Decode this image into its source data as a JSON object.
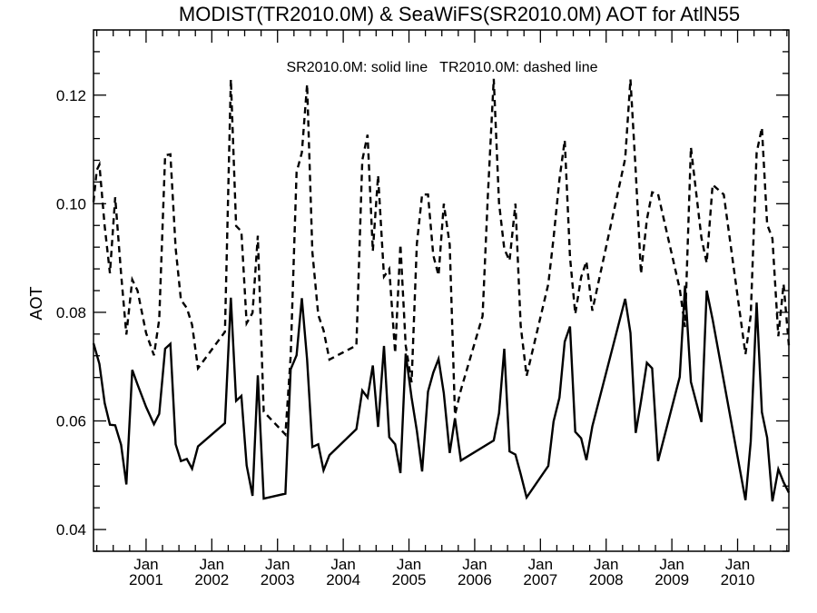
{
  "chart_data": {
    "type": "line",
    "title": "MODIST(TR2010.0M) & SeaWiFS(SR2010.0M)  AOT for AtlN55",
    "ylabel": "AOT",
    "xlabel": "",
    "legend_text": "SR2010.0M: solid line   TR2010.0M: dashed line",
    "legend_position": "top-center",
    "grid": false,
    "xlim": [
      2000.2,
      2010.78
    ],
    "ylim": [
      0.036,
      0.132
    ],
    "y_ticks": [
      {
        "value": 0.04,
        "label": "0.04"
      },
      {
        "value": 0.06,
        "label": "0.06"
      },
      {
        "value": 0.08,
        "label": "0.08"
      },
      {
        "value": 0.1,
        "label": "0.10"
      },
      {
        "value": 0.12,
        "label": "0.12"
      }
    ],
    "x_ticks": [
      {
        "value": 2001,
        "month": "Jan",
        "year": "2001"
      },
      {
        "value": 2002,
        "month": "Jan",
        "year": "2002"
      },
      {
        "value": 2003,
        "month": "Jan",
        "year": "2003"
      },
      {
        "value": 2004,
        "month": "Jan",
        "year": "2004"
      },
      {
        "value": 2005,
        "month": "Jan",
        "year": "2005"
      },
      {
        "value": 2006,
        "month": "Jan",
        "year": "2006"
      },
      {
        "value": 2007,
        "month": "Jan",
        "year": "2007"
      },
      {
        "value": 2008,
        "month": "Jan",
        "year": "2008"
      },
      {
        "value": 2009,
        "month": "Jan",
        "year": "2009"
      },
      {
        "value": 2010,
        "month": "Jan",
        "year": "2010"
      }
    ],
    "series": [
      {
        "name": "SR2010.0M",
        "style": "solid",
        "color": "#000000",
        "x": [
          2000.2,
          2000.29,
          2000.37,
          2000.45,
          2000.53,
          2000.62,
          2000.7,
          2000.79,
          2000.87,
          2001.0,
          2001.12,
          2001.2,
          2001.29,
          2001.37,
          2001.45,
          2001.53,
          2001.62,
          2001.7,
          2001.79,
          2002.2,
          2002.29,
          2002.37,
          2002.45,
          2002.53,
          2002.62,
          2002.7,
          2002.79,
          2003.12,
          2003.2,
          2003.29,
          2003.37,
          2003.45,
          2003.53,
          2003.62,
          2003.7,
          2003.79,
          2004.2,
          2004.29,
          2004.37,
          2004.45,
          2004.53,
          2004.62,
          2004.7,
          2004.79,
          2004.87,
          2004.95,
          2005.04,
          2005.12,
          2005.2,
          2005.29,
          2005.37,
          2005.45,
          2005.53,
          2005.62,
          2005.7,
          2005.79,
          2006.29,
          2006.37,
          2006.45,
          2006.53,
          2006.62,
          2006.7,
          2006.79,
          2007.12,
          2007.2,
          2007.29,
          2007.37,
          2007.45,
          2007.53,
          2007.62,
          2007.7,
          2007.79,
          2008.29,
          2008.37,
          2008.45,
          2008.53,
          2008.62,
          2008.7,
          2008.79,
          2009.12,
          2009.2,
          2009.29,
          2009.45,
          2009.53,
          2009.62,
          2010.12,
          2010.2,
          2010.29,
          2010.37,
          2010.45,
          2010.53,
          2010.62,
          2010.7,
          2010.78
        ],
        "y": [
          0.0743,
          0.0705,
          0.0633,
          0.0593,
          0.0592,
          0.0556,
          0.0483,
          0.0694,
          0.0667,
          0.0626,
          0.0594,
          0.0613,
          0.0733,
          0.0742,
          0.0557,
          0.0526,
          0.053,
          0.0512,
          0.0553,
          0.0596,
          0.0827,
          0.0637,
          0.0646,
          0.0518,
          0.0462,
          0.0684,
          0.0457,
          0.0466,
          0.0695,
          0.0721,
          0.0826,
          0.0713,
          0.0552,
          0.0557,
          0.0509,
          0.0537,
          0.0585,
          0.0656,
          0.0643,
          0.0702,
          0.0589,
          0.0738,
          0.057,
          0.0557,
          0.0504,
          0.0724,
          0.0643,
          0.0582,
          0.0507,
          0.0654,
          0.0689,
          0.0714,
          0.0651,
          0.0541,
          0.0605,
          0.0527,
          0.0564,
          0.0614,
          0.0733,
          0.0544,
          0.0538,
          0.0502,
          0.0459,
          0.0517,
          0.0599,
          0.0643,
          0.0746,
          0.0774,
          0.058,
          0.0568,
          0.0528,
          0.059,
          0.0825,
          0.0762,
          0.0578,
          0.0636,
          0.0707,
          0.0697,
          0.0526,
          0.0681,
          0.0849,
          0.0672,
          0.0598,
          0.084,
          0.0787,
          0.0454,
          0.0562,
          0.0818,
          0.0616,
          0.0569,
          0.0452,
          0.0511,
          0.0487,
          0.0468
        ]
      },
      {
        "name": "TR2010.0M",
        "style": "dashed",
        "color": "#000000",
        "x": [
          2000.2,
          2000.25,
          2000.29,
          2000.37,
          2000.45,
          2000.53,
          2000.62,
          2000.7,
          2000.79,
          2000.87,
          2001.0,
          2001.12,
          2001.2,
          2001.29,
          2001.37,
          2001.45,
          2001.53,
          2001.62,
          2001.7,
          2001.79,
          2002.2,
          2002.29,
          2002.37,
          2002.45,
          2002.53,
          2002.62,
          2002.7,
          2002.79,
          2003.12,
          2003.2,
          2003.29,
          2003.37,
          2003.45,
          2003.53,
          2003.62,
          2003.7,
          2003.79,
          2004.2,
          2004.29,
          2004.37,
          2004.45,
          2004.53,
          2004.62,
          2004.7,
          2004.79,
          2004.87,
          2004.95,
          2005.04,
          2005.12,
          2005.2,
          2005.29,
          2005.37,
          2005.45,
          2005.53,
          2005.62,
          2005.7,
          2005.79,
          2006.12,
          2006.2,
          2006.29,
          2006.37,
          2006.45,
          2006.53,
          2006.62,
          2006.7,
          2006.79,
          2007.12,
          2007.2,
          2007.29,
          2007.37,
          2007.45,
          2007.53,
          2007.62,
          2007.7,
          2007.79,
          2008.29,
          2008.37,
          2008.45,
          2008.53,
          2008.62,
          2008.7,
          2008.79,
          2009.12,
          2009.2,
          2009.29,
          2009.45,
          2009.53,
          2009.62,
          2009.79,
          2010.12,
          2010.2,
          2010.29,
          2010.37,
          2010.45,
          2010.53,
          2010.62,
          2010.7,
          2010.78
        ],
        "y": [
          0.1003,
          0.1062,
          0.1072,
          0.0959,
          0.0872,
          0.1012,
          0.0871,
          0.0759,
          0.086,
          0.084,
          0.0762,
          0.0721,
          0.0787,
          0.1089,
          0.1091,
          0.0918,
          0.0823,
          0.0808,
          0.0777,
          0.0697,
          0.0764,
          0.1229,
          0.0959,
          0.0949,
          0.078,
          0.0799,
          0.0941,
          0.0617,
          0.0575,
          0.0719,
          0.1058,
          0.1094,
          0.122,
          0.0911,
          0.0795,
          0.0767,
          0.0713,
          0.0739,
          0.108,
          0.1127,
          0.0913,
          0.1052,
          0.0866,
          0.088,
          0.0725,
          0.0925,
          0.0739,
          0.0671,
          0.0926,
          0.1017,
          0.1017,
          0.0905,
          0.0868,
          0.1,
          0.0925,
          0.0611,
          0.0657,
          0.0793,
          0.1014,
          0.123,
          0.1002,
          0.0917,
          0.0895,
          0.1,
          0.0775,
          0.0683,
          0.0852,
          0.0937,
          0.1045,
          0.1117,
          0.0902,
          0.0797,
          0.0865,
          0.0894,
          0.0803,
          0.1083,
          0.1229,
          0.106,
          0.0871,
          0.0971,
          0.1021,
          0.1018,
          0.0843,
          0.0773,
          0.1104,
          0.0937,
          0.0891,
          0.1035,
          0.1017,
          0.0723,
          0.0794,
          0.1094,
          0.114,
          0.0962,
          0.0936,
          0.0756,
          0.0852,
          0.0739
        ]
      }
    ]
  }
}
